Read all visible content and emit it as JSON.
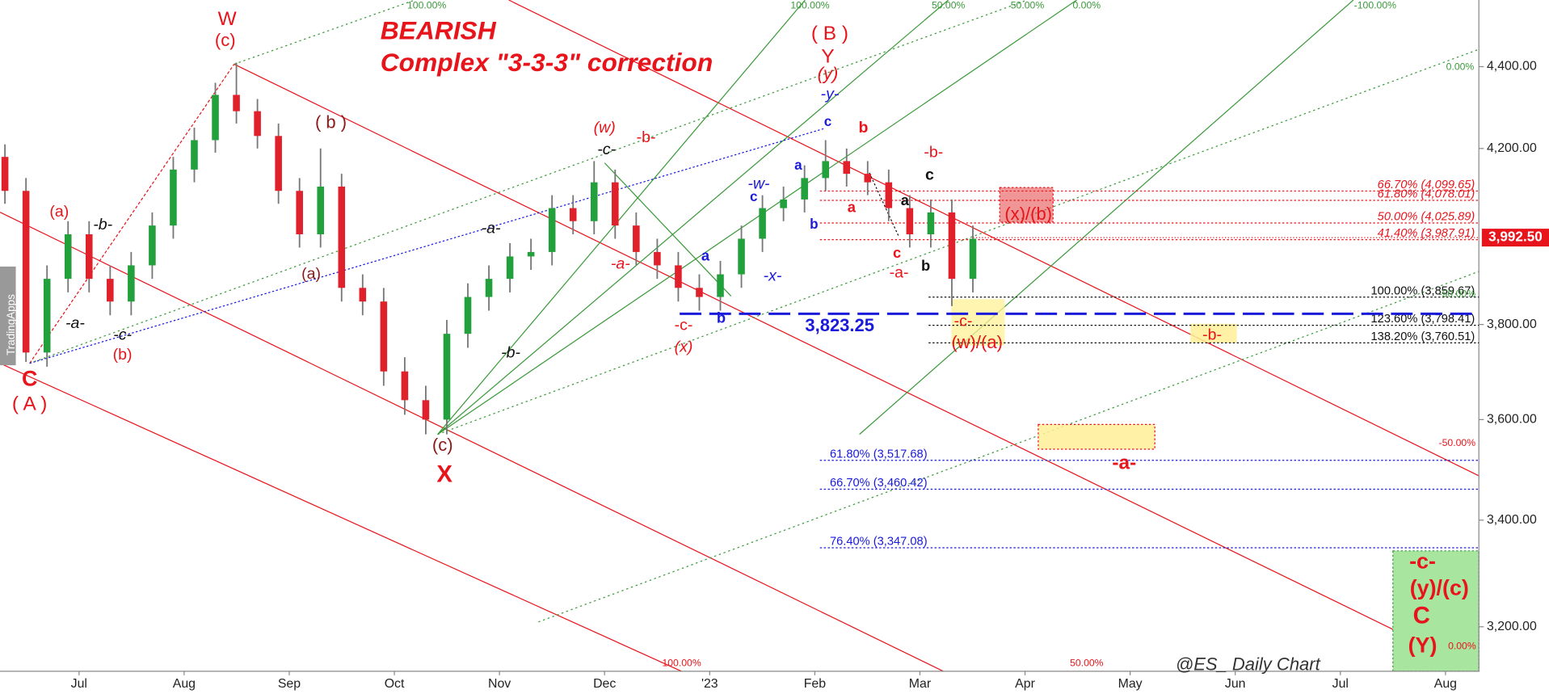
{
  "chart_data": {
    "type": "candlestick",
    "title": "BEARISH",
    "subtitle": "Complex \"3-3-3\" correction",
    "watermark": "@ES_ Daily Chart",
    "brand": "TradingApps",
    "log_scale": true,
    "ylim": [
      3120,
      4570
    ],
    "yticks": [
      {
        "value": 3200,
        "label": "3,200.00"
      },
      {
        "value": 3400,
        "label": "3,400.00"
      },
      {
        "value": 3600,
        "label": "3,600.00"
      },
      {
        "value": 3800,
        "label": "3,800.00"
      },
      {
        "value": 4200,
        "label": "4,200.00"
      },
      {
        "value": 4400,
        "label": "4,400.00"
      }
    ],
    "x_labels": [
      "Jul",
      "Aug",
      "Sep",
      "Oct",
      "Nov",
      "Dec",
      "'23",
      "Feb",
      "Mar",
      "Apr",
      "May",
      "Jun",
      "Jul",
      "Aug"
    ],
    "up_color": "#21a03c",
    "down_color": "#e0202a",
    "open": [
      4180,
      4100,
      3740,
      3900,
      4000,
      3900,
      3850,
      3930,
      4020,
      4150,
      4220,
      4330,
      4290,
      4230,
      4100,
      4000,
      4110,
      3880,
      3850,
      3700,
      3640,
      3600,
      3780,
      3860,
      3900,
      3950,
      3960,
      4060,
      4030,
      4120,
      4020,
      3960,
      3930,
      3880,
      3860,
      3910,
      3990,
      4060,
      4080,
      4130,
      4170,
      4140,
      4120,
      4060,
      4000,
      4050,
      3900
    ],
    "high": [
      4210,
      4130,
      3930,
      4030,
      4030,
      3930,
      3960,
      4050,
      4180,
      4250,
      4360,
      4410,
      4320,
      4260,
      4130,
      4200,
      4140,
      3910,
      3880,
      3730,
      3670,
      3810,
      3890,
      3930,
      3980,
      3990,
      4090,
      4090,
      4170,
      4150,
      4050,
      3990,
      3960,
      3910,
      3940,
      4020,
      4090,
      4110,
      4160,
      4220,
      4200,
      4170,
      4150,
      4090,
      4080,
      4080,
      4020
    ],
    "low": [
      4070,
      3720,
      3710,
      3870,
      3870,
      3820,
      3820,
      3900,
      3990,
      4120,
      4190,
      4260,
      4200,
      4070,
      3970,
      3970,
      3850,
      3820,
      3670,
      3610,
      3570,
      3570,
      3750,
      3830,
      3870,
      3920,
      3930,
      4000,
      4000,
      3990,
      3930,
      3900,
      3850,
      3830,
      3830,
      3880,
      3960,
      4030,
      4050,
      4100,
      4110,
      4090,
      4030,
      3970,
      3970,
      3840,
      3870
    ],
    "close": [
      4100,
      3740,
      3900,
      4000,
      3900,
      3850,
      3930,
      4020,
      4150,
      4220,
      4330,
      4290,
      4230,
      4100,
      4000,
      4110,
      3880,
      3850,
      3700,
      3640,
      3600,
      3780,
      3860,
      3900,
      3950,
      3960,
      4060,
      4030,
      4120,
      4020,
      3960,
      3930,
      3880,
      3860,
      3910,
      3990,
      4060,
      4080,
      4130,
      4170,
      4140,
      4120,
      4060,
      4000,
      4050,
      3900,
      3990
    ],
    "last_price": {
      "value": 3992.5,
      "label": "3,992.50"
    },
    "support": {
      "value": 3823.25,
      "label": "3,823.25"
    },
    "fib_levels": [
      {
        "value": 4099.65,
        "label": "66.70% (4,099.65)"
      },
      {
        "value": 4078.01,
        "label": "61.80% (4,078.01)"
      },
      {
        "value": 4025.89,
        "label": "50.00% (4,025.89)"
      },
      {
        "value": 3987.91,
        "label": "41.40% (3,987.91)"
      },
      {
        "value": 3859.67,
        "label": "100.00% (3,859.67)"
      },
      {
        "value": 3798.41,
        "label": "123.60% (3,798.41)"
      },
      {
        "value": 3760.51,
        "label": "138.20% (3,760.51)"
      },
      {
        "value": 3517.68,
        "label": "61.80% (3,517.68)"
      },
      {
        "value": 3460.42,
        "label": "66.70% (3,460.42)"
      },
      {
        "value": 3347.08,
        "label": "76.40% (3,347.08)"
      }
    ],
    "annotations": [
      "W",
      "(c)",
      "( B )",
      "Y",
      "(y)",
      "-y-",
      "C",
      "( A )",
      "(a)",
      "-b-",
      "-a-",
      "-c-",
      "(b)",
      "( b )",
      "(a)",
      "-a-",
      "-b-",
      "(c)",
      "X",
      "(w)",
      "-b-",
      "-c-",
      "-a-",
      "a",
      "b",
      "-c-",
      "(x)",
      "-x-",
      "c",
      "-w-",
      "a",
      "b",
      "c",
      "b",
      "a",
      "c",
      "-a-",
      "b",
      "a",
      "c",
      "-b-",
      "-c-",
      "(w)/(a)",
      "(x)/(b)",
      "-b-",
      "-a-",
      "-c-",
      "(y)/(c)",
      "C",
      "(Y)",
      "100.00%",
      "100.00%",
      "50.00%",
      "50.00%",
      "0.00%",
      "-100.00%",
      "0.00%",
      "-50.00%",
      "100.00%",
      "50.00%",
      "-50.00%",
      "0.00%"
    ]
  }
}
